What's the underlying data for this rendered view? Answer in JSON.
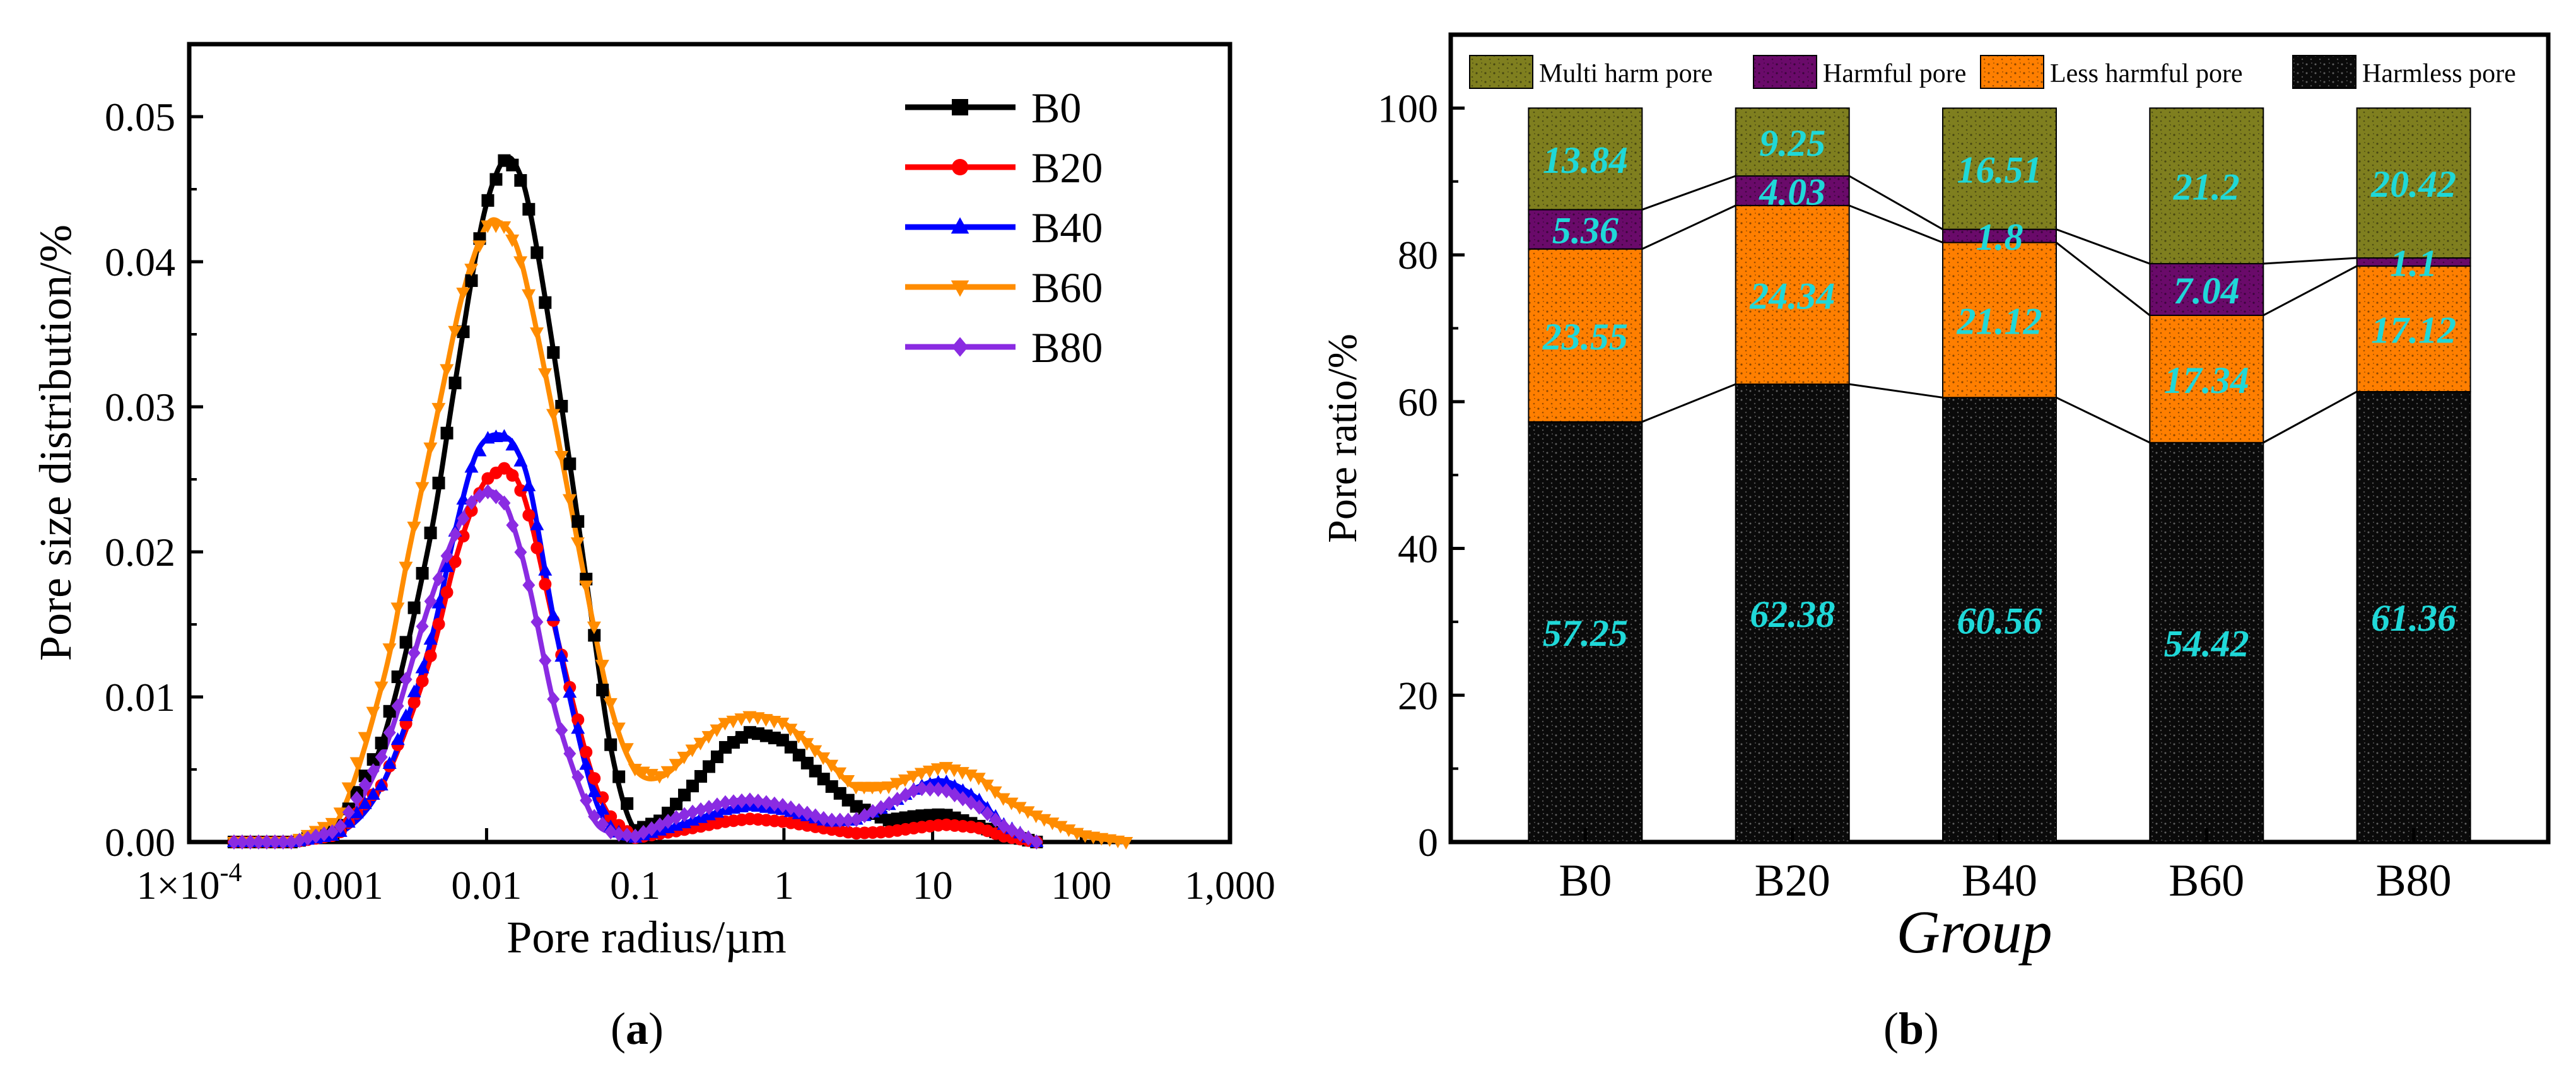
{
  "figure": {
    "panel_a_label": "a",
    "panel_b_label": "b"
  },
  "colors": {
    "B0": "#000000",
    "B20": "#ff0000",
    "B40": "#0000ff",
    "B60": "#ff8c00",
    "B80": "#8a2be2",
    "multi_harm": "#7f7f1f",
    "harmful": "#6a0a6a",
    "less_harmful": "#ff7f00",
    "harmless": "#0a0a0a",
    "value_label": "#1fd8d8"
  },
  "chart_data": [
    {
      "type": "line",
      "panel": "a",
      "xlabel": "Pore radius/µm",
      "ylabel": "Pore size distribution/%",
      "x_scale": "log",
      "xlim": [
        0.0001,
        1000
      ],
      "ylim": [
        0,
        0.055
      ],
      "x_ticks": [
        0.0001,
        0.001,
        0.01,
        0.1,
        1,
        10,
        100,
        1000
      ],
      "x_tick_labels": [
        "1×10",
        "0.001",
        "0.01",
        "0.1",
        "1",
        "10",
        "100",
        "1,000"
      ],
      "x_tick_first_exponent": "-4",
      "y_ticks": [
        0,
        0.01,
        0.02,
        0.03,
        0.04,
        0.05
      ],
      "y_tick_labels": [
        "0.00",
        "0.01",
        "0.02",
        "0.03",
        "0.04",
        "0.05"
      ],
      "legend_position": "top-right",
      "series": [
        {
          "name": "B0",
          "marker": "square",
          "x": [
            0.0002,
            0.0005,
            0.001,
            0.002,
            0.004,
            0.006,
            0.008,
            0.01,
            0.013,
            0.016,
            0.02,
            0.03,
            0.05,
            0.07,
            0.1,
            0.15,
            0.25,
            0.4,
            0.6,
            1,
            2,
            3,
            5,
            8,
            12,
            18,
            30,
            50
          ],
          "y": [
            0,
            0,
            0.0008,
            0.007,
            0.02,
            0.031,
            0.039,
            0.044,
            0.047,
            0.0465,
            0.043,
            0.032,
            0.016,
            0.006,
            0.0008,
            0.0015,
            0.004,
            0.0065,
            0.0076,
            0.007,
            0.004,
            0.0025,
            0.0015,
            0.0018,
            0.0019,
            0.0013,
            0.0005,
            0
          ]
        },
        {
          "name": "B20",
          "marker": "circle",
          "x": [
            0.0002,
            0.0005,
            0.001,
            0.002,
            0.004,
            0.006,
            0.008,
            0.01,
            0.013,
            0.016,
            0.02,
            0.03,
            0.05,
            0.07,
            0.1,
            0.2,
            0.4,
            0.6,
            1,
            2,
            3,
            5,
            8,
            12,
            20,
            30,
            50
          ],
          "y": [
            0,
            0,
            0.0005,
            0.004,
            0.012,
            0.019,
            0.023,
            0.025,
            0.0258,
            0.025,
            0.022,
            0.014,
            0.005,
            0.0015,
            0.0003,
            0.0008,
            0.0014,
            0.0016,
            0.0014,
            0.0009,
            0.0006,
            0.0007,
            0.001,
            0.0012,
            0.001,
            0.0004,
            0
          ]
        },
        {
          "name": "B40",
          "marker": "triangle",
          "x": [
            0.0002,
            0.0005,
            0.001,
            0.002,
            0.004,
            0.006,
            0.008,
            0.01,
            0.013,
            0.016,
            0.02,
            0.03,
            0.05,
            0.07,
            0.1,
            0.2,
            0.4,
            0.6,
            1,
            2,
            3,
            5,
            8,
            12,
            20,
            30,
            50
          ],
          "y": [
            0,
            0,
            0.0005,
            0.004,
            0.013,
            0.021,
            0.026,
            0.0278,
            0.028,
            0.027,
            0.024,
            0.014,
            0.004,
            0.0008,
            0.0003,
            0.0012,
            0.0022,
            0.0025,
            0.0022,
            0.0014,
            0.0015,
            0.0025,
            0.0038,
            0.0042,
            0.003,
            0.0012,
            0
          ]
        },
        {
          "name": "B60",
          "marker": "triangle-down",
          "x": [
            0.0002,
            0.0005,
            0.001,
            0.002,
            0.003,
            0.005,
            0.007,
            0.01,
            0.013,
            0.016,
            0.02,
            0.03,
            0.05,
            0.07,
            0.1,
            0.15,
            0.25,
            0.4,
            0.6,
            1,
            2,
            3,
            5,
            8,
            12,
            20,
            30,
            50,
            100,
            200
          ],
          "y": [
            0,
            0,
            0.0015,
            0.011,
            0.02,
            0.031,
            0.038,
            0.0425,
            0.0425,
            0.041,
            0.037,
            0.028,
            0.016,
            0.009,
            0.005,
            0.0045,
            0.0065,
            0.0082,
            0.0087,
            0.0082,
            0.0055,
            0.0038,
            0.0038,
            0.0047,
            0.0052,
            0.0045,
            0.003,
            0.0018,
            0.0005,
            0
          ]
        },
        {
          "name": "B80",
          "marker": "diamond",
          "x": [
            0.0002,
            0.0005,
            0.001,
            0.002,
            0.004,
            0.006,
            0.008,
            0.01,
            0.013,
            0.016,
            0.02,
            0.03,
            0.05,
            0.07,
            0.1,
            0.2,
            0.4,
            0.6,
            1,
            2,
            3,
            5,
            8,
            12,
            20,
            30,
            50
          ],
          "y": [
            0,
            0,
            0.0008,
            0.006,
            0.016,
            0.021,
            0.0235,
            0.0242,
            0.0235,
            0.021,
            0.017,
            0.0085,
            0.002,
            0.0006,
            0.0004,
            0.0018,
            0.0027,
            0.0029,
            0.0025,
            0.0015,
            0.0015,
            0.0026,
            0.0037,
            0.0036,
            0.0025,
            0.0011,
            0
          ]
        }
      ]
    },
    {
      "type": "bar",
      "stacked": true,
      "panel": "b",
      "xlabel": "Group",
      "ylabel": "Pore ratio/%",
      "ylim": [
        0,
        110
      ],
      "y_ticks": [
        0,
        20,
        40,
        60,
        80,
        100
      ],
      "categories": [
        "B0",
        "B20",
        "B40",
        "B60",
        "B80"
      ],
      "legend_position": "top",
      "series": [
        {
          "name": "Harmless pore",
          "values": [
            57.25,
            62.38,
            60.56,
            54.42,
            61.36
          ],
          "labels": [
            "57.25",
            "62.38",
            "60.56",
            "54.42",
            "61.36"
          ]
        },
        {
          "name": "Less harmful pore",
          "values": [
            23.55,
            24.34,
            21.12,
            17.34,
            17.12
          ],
          "labels": [
            "23.55",
            "24.34",
            "21.12",
            "17.34",
            "17.12"
          ]
        },
        {
          "name": "Harmful pore",
          "values": [
            5.36,
            4.03,
            1.8,
            7.04,
            1.1
          ],
          "labels": [
            "5.36",
            "4.03",
            "1.8",
            "7.04",
            "1.1"
          ]
        },
        {
          "name": "Multi harm pore",
          "values": [
            13.84,
            9.25,
            16.51,
            21.2,
            20.42
          ],
          "labels": [
            "13.84",
            "9.25",
            "16.51",
            "21.2",
            "20.42"
          ]
        }
      ]
    }
  ]
}
